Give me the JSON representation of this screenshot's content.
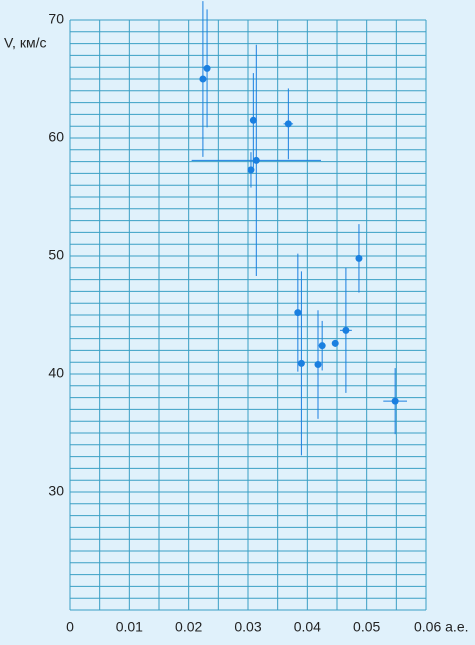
{
  "chart_data": {
    "type": "scatter",
    "y_label": "V, км/с",
    "xlim": [
      0,
      0.06
    ],
    "ylim": [
      20,
      70
    ],
    "xticks": [
      0,
      0.01,
      0.02,
      0.03,
      0.04,
      0.05,
      {
        "value": 0.06,
        "label": "0.06 а.е."
      }
    ],
    "yticks": [
      30,
      40,
      50,
      60,
      70
    ],
    "grid": true,
    "xgrid_step": 0.005,
    "ygrid_step": 1,
    "grid_color": "#3a9fc4",
    "series": [
      {
        "color": "#1a7fe0",
        "x": [
          0.0224,
          0.0231,
          0.0309,
          0.0368,
          0.0314,
          0.0305,
          0.0487,
          0.0384,
          0.039,
          0.0418,
          0.0425,
          0.0447,
          0.0465,
          0.0548
        ],
        "values": [
          65.0,
          65.9,
          61.5,
          61.2,
          58.1,
          57.3,
          49.8,
          45.2,
          40.9,
          40.8,
          42.4,
          42.6,
          43.7,
          37.7
        ],
        "yerr": [
          6.6,
          5.0,
          4.0,
          3.0,
          9.8,
          1.5,
          2.9,
          5.0,
          7.8,
          4.6,
          2.1,
          0.3,
          5.3,
          2.8
        ],
        "xerr": [
          0,
          0,
          0.0005,
          0.0008,
          0.0109,
          0,
          0.0005,
          0.0005,
          0.0005,
          0,
          0,
          0.0005,
          0.001,
          0.002
        ]
      }
    ]
  }
}
